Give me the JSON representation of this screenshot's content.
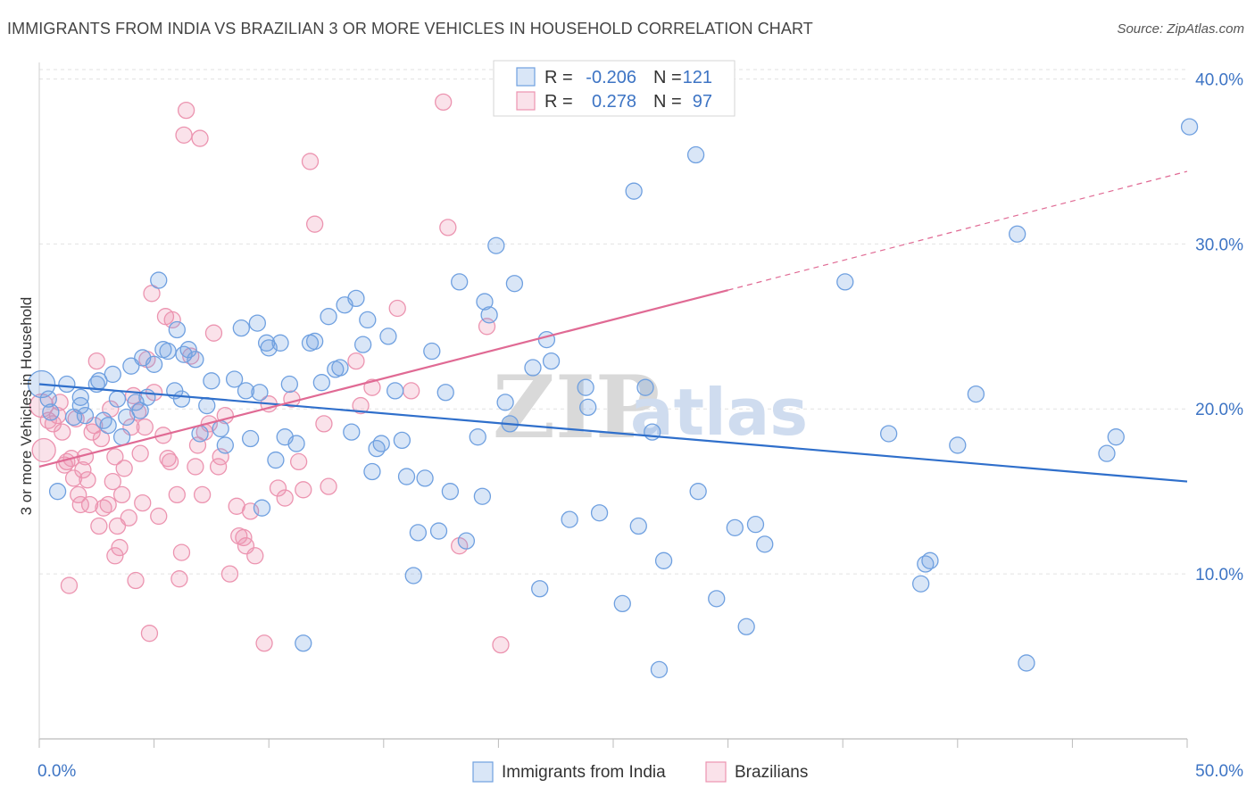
{
  "header": {
    "title": "IMMIGRANTS FROM INDIA VS BRAZILIAN 3 OR MORE VEHICLES IN HOUSEHOLD CORRELATION CHART",
    "source": "Source: ZipAtlas.com"
  },
  "watermark": {
    "zip": "ZIP",
    "atlas": "atlas"
  },
  "legend_top": {
    "rows": [
      {
        "r_label": "R =",
        "r_value": "-0.206",
        "n_label": "N =",
        "n_value": "121",
        "color": "#6fa0e0"
      },
      {
        "r_label": "R =",
        "r_value": "0.278",
        "n_label": "N =",
        "n_value": "97",
        "color": "#ec94b0"
      }
    ]
  },
  "legend_bottom": [
    {
      "label": "Immigrants from India",
      "color": "#6fa0e0"
    },
    {
      "label": "Brazilians",
      "color": "#ec94b0"
    }
  ],
  "chart_data": {
    "type": "scatter",
    "xlabel": "",
    "ylabel": "3 or more Vehicles in Household",
    "xlim": [
      0,
      50
    ],
    "ylim": [
      0,
      41
    ],
    "x_tick_labels": [
      {
        "value": 0,
        "label": "0.0%"
      },
      {
        "value": 50,
        "label": "50.0%"
      }
    ],
    "y_tick_labels": [
      {
        "value": 10,
        "label": "10.0%"
      },
      {
        "value": 20,
        "label": "20.0%"
      },
      {
        "value": 30,
        "label": "30.0%"
      },
      {
        "value": 40,
        "label": "40.0%"
      }
    ],
    "grid": true,
    "colors": {
      "india": "#6fa0e0",
      "brazil": "#ec94b0",
      "india_line": "#2f6fcb",
      "brazil_line": "#e06a94"
    },
    "series": [
      {
        "name": "Immigrants from India",
        "trend": {
          "x0": 0,
          "y0": 21.5,
          "x1": 50,
          "y1": 15.6
        },
        "points": [
          [
            0.1,
            21.5
          ],
          [
            1.2,
            21.5
          ],
          [
            1.5,
            19.5
          ],
          [
            1.8,
            20.2
          ],
          [
            0.5,
            19.8
          ],
          [
            0.8,
            15.0
          ],
          [
            1.8,
            20.7
          ],
          [
            2.5,
            21.5
          ],
          [
            2.6,
            21.7
          ],
          [
            2.8,
            19.3
          ],
          [
            3.0,
            19.0
          ],
          [
            3.2,
            22.1
          ],
          [
            3.4,
            20.6
          ],
          [
            3.6,
            18.3
          ],
          [
            3.8,
            19.5
          ],
          [
            4.0,
            22.6
          ],
          [
            4.2,
            20.4
          ],
          [
            4.4,
            19.9
          ],
          [
            4.5,
            23.1
          ],
          [
            4.7,
            20.7
          ],
          [
            5.0,
            22.7
          ],
          [
            5.2,
            27.8
          ],
          [
            5.4,
            23.6
          ],
          [
            5.6,
            23.5
          ],
          [
            5.9,
            21.1
          ],
          [
            6.0,
            24.8
          ],
          [
            6.3,
            23.3
          ],
          [
            6.5,
            23.6
          ],
          [
            6.8,
            23.0
          ],
          [
            7.0,
            18.5
          ],
          [
            7.3,
            20.2
          ],
          [
            7.5,
            21.7
          ],
          [
            7.9,
            18.8
          ],
          [
            8.1,
            17.8
          ],
          [
            8.5,
            21.8
          ],
          [
            8.8,
            24.9
          ],
          [
            9.0,
            21.1
          ],
          [
            9.2,
            18.2
          ],
          [
            9.5,
            25.2
          ],
          [
            9.7,
            14.0
          ],
          [
            9.9,
            24.0
          ],
          [
            10.0,
            23.7
          ],
          [
            10.3,
            16.9
          ],
          [
            10.5,
            24.0
          ],
          [
            10.7,
            18.3
          ],
          [
            10.9,
            21.5
          ],
          [
            11.2,
            17.9
          ],
          [
            11.5,
            5.8
          ],
          [
            11.8,
            24.0
          ],
          [
            12.0,
            24.1
          ],
          [
            12.3,
            21.6
          ],
          [
            12.6,
            25.6
          ],
          [
            12.9,
            22.4
          ],
          [
            13.1,
            22.5
          ],
          [
            13.3,
            26.3
          ],
          [
            13.6,
            18.6
          ],
          [
            13.8,
            26.7
          ],
          [
            14.1,
            23.9
          ],
          [
            14.3,
            25.4
          ],
          [
            14.5,
            16.2
          ],
          [
            14.7,
            17.6
          ],
          [
            14.9,
            17.9
          ],
          [
            15.2,
            24.4
          ],
          [
            15.5,
            21.1
          ],
          [
            15.8,
            18.1
          ],
          [
            16.0,
            15.9
          ],
          [
            16.3,
            9.9
          ],
          [
            16.5,
            12.5
          ],
          [
            16.8,
            15.8
          ],
          [
            17.1,
            23.5
          ],
          [
            17.4,
            12.6
          ],
          [
            17.7,
            21.0
          ],
          [
            17.9,
            15.0
          ],
          [
            18.3,
            27.7
          ],
          [
            18.6,
            12.0
          ],
          [
            19.1,
            18.3
          ],
          [
            19.3,
            14.7
          ],
          [
            19.4,
            26.5
          ],
          [
            19.6,
            25.7
          ],
          [
            19.9,
            29.9
          ],
          [
            20.3,
            20.4
          ],
          [
            20.5,
            19.1
          ],
          [
            20.7,
            27.6
          ],
          [
            21.5,
            22.5
          ],
          [
            21.8,
            9.1
          ],
          [
            22.1,
            24.2
          ],
          [
            22.3,
            22.9
          ],
          [
            23.1,
            13.3
          ],
          [
            23.8,
            21.3
          ],
          [
            23.9,
            20.1
          ],
          [
            24.4,
            13.7
          ],
          [
            25.4,
            8.2
          ],
          [
            25.9,
            33.2
          ],
          [
            26.1,
            12.9
          ],
          [
            26.4,
            21.3
          ],
          [
            26.7,
            18.6
          ],
          [
            27.0,
            4.2
          ],
          [
            27.2,
            10.8
          ],
          [
            28.7,
            15.0
          ],
          [
            29.5,
            8.5
          ],
          [
            30.3,
            12.8
          ],
          [
            30.8,
            6.8
          ],
          [
            31.2,
            13.0
          ],
          [
            31.6,
            11.8
          ],
          [
            35.1,
            27.7
          ],
          [
            37.0,
            18.5
          ],
          [
            38.4,
            9.4
          ],
          [
            38.6,
            10.6
          ],
          [
            38.8,
            10.8
          ],
          [
            40.0,
            17.8
          ],
          [
            40.8,
            20.9
          ],
          [
            42.6,
            30.6
          ],
          [
            43.0,
            4.6
          ],
          [
            46.5,
            17.3
          ],
          [
            46.9,
            18.3
          ],
          [
            50.1,
            37.1
          ],
          [
            28.6,
            35.4
          ],
          [
            0.4,
            20.6
          ],
          [
            2.0,
            19.6
          ],
          [
            6.2,
            20.6
          ],
          [
            9.6,
            21.0
          ]
        ]
      },
      {
        "name": "Brazilians",
        "trend": {
          "x0": 0,
          "y0": 16.5,
          "x1": 30,
          "y1": 27.2,
          "dash_to_x": 50,
          "dash_to_y": 34.4
        },
        "points": [
          [
            0.1,
            20.2
          ],
          [
            0.2,
            17.5
          ],
          [
            0.4,
            19.3
          ],
          [
            0.6,
            19.1
          ],
          [
            0.8,
            19.6
          ],
          [
            1.0,
            18.6
          ],
          [
            1.1,
            16.6
          ],
          [
            1.2,
            16.8
          ],
          [
            1.4,
            17.0
          ],
          [
            1.5,
            15.8
          ],
          [
            1.6,
            19.4
          ],
          [
            1.7,
            14.8
          ],
          [
            1.8,
            14.2
          ],
          [
            1.9,
            16.3
          ],
          [
            2.0,
            17.1
          ],
          [
            2.1,
            15.7
          ],
          [
            2.2,
            14.2
          ],
          [
            2.3,
            18.6
          ],
          [
            2.4,
            19.0
          ],
          [
            2.5,
            22.9
          ],
          [
            2.6,
            12.9
          ],
          [
            2.7,
            18.2
          ],
          [
            2.8,
            14.0
          ],
          [
            3.0,
            14.2
          ],
          [
            3.1,
            20.0
          ],
          [
            3.2,
            15.6
          ],
          [
            3.3,
            17.1
          ],
          [
            3.4,
            12.9
          ],
          [
            3.5,
            11.6
          ],
          [
            3.6,
            14.8
          ],
          [
            3.7,
            16.4
          ],
          [
            3.9,
            13.4
          ],
          [
            4.0,
            18.9
          ],
          [
            4.1,
            20.8
          ],
          [
            4.2,
            9.6
          ],
          [
            4.3,
            19.8
          ],
          [
            4.4,
            17.3
          ],
          [
            4.5,
            14.3
          ],
          [
            4.6,
            18.9
          ],
          [
            4.7,
            23.0
          ],
          [
            4.8,
            6.4
          ],
          [
            4.9,
            27.0
          ],
          [
            5.0,
            21.0
          ],
          [
            5.2,
            13.5
          ],
          [
            5.4,
            18.4
          ],
          [
            5.5,
            25.6
          ],
          [
            5.6,
            17.0
          ],
          [
            5.7,
            16.8
          ],
          [
            5.8,
            25.4
          ],
          [
            6.0,
            14.8
          ],
          [
            6.2,
            11.3
          ],
          [
            6.3,
            36.6
          ],
          [
            6.4,
            38.1
          ],
          [
            6.6,
            23.2
          ],
          [
            6.8,
            16.5
          ],
          [
            6.9,
            17.8
          ],
          [
            7.0,
            36.4
          ],
          [
            7.1,
            14.8
          ],
          [
            7.2,
            18.6
          ],
          [
            7.4,
            19.1
          ],
          [
            7.6,
            24.6
          ],
          [
            7.9,
            17.1
          ],
          [
            8.1,
            19.6
          ],
          [
            8.3,
            10.0
          ],
          [
            8.6,
            14.1
          ],
          [
            8.9,
            12.2
          ],
          [
            9.0,
            11.7
          ],
          [
            9.2,
            13.8
          ],
          [
            9.4,
            11.1
          ],
          [
            9.8,
            5.8
          ],
          [
            10.0,
            20.3
          ],
          [
            10.4,
            15.2
          ],
          [
            10.7,
            14.6
          ],
          [
            11.0,
            20.6
          ],
          [
            11.3,
            16.8
          ],
          [
            11.5,
            15.1
          ],
          [
            11.8,
            35.0
          ],
          [
            12.0,
            31.2
          ],
          [
            12.4,
            19.1
          ],
          [
            12.6,
            15.3
          ],
          [
            13.8,
            22.9
          ],
          [
            14.0,
            20.2
          ],
          [
            14.5,
            21.3
          ],
          [
            15.6,
            26.1
          ],
          [
            16.2,
            21.1
          ],
          [
            17.6,
            38.6
          ],
          [
            17.8,
            31.0
          ],
          [
            18.3,
            11.7
          ],
          [
            19.5,
            25.0
          ],
          [
            20.1,
            5.7
          ],
          [
            21.3,
            38.5
          ],
          [
            1.3,
            9.3
          ],
          [
            3.3,
            11.1
          ],
          [
            6.1,
            9.7
          ],
          [
            7.8,
            16.5
          ],
          [
            8.7,
            12.3
          ],
          [
            0.9,
            20.4
          ]
        ]
      }
    ]
  }
}
